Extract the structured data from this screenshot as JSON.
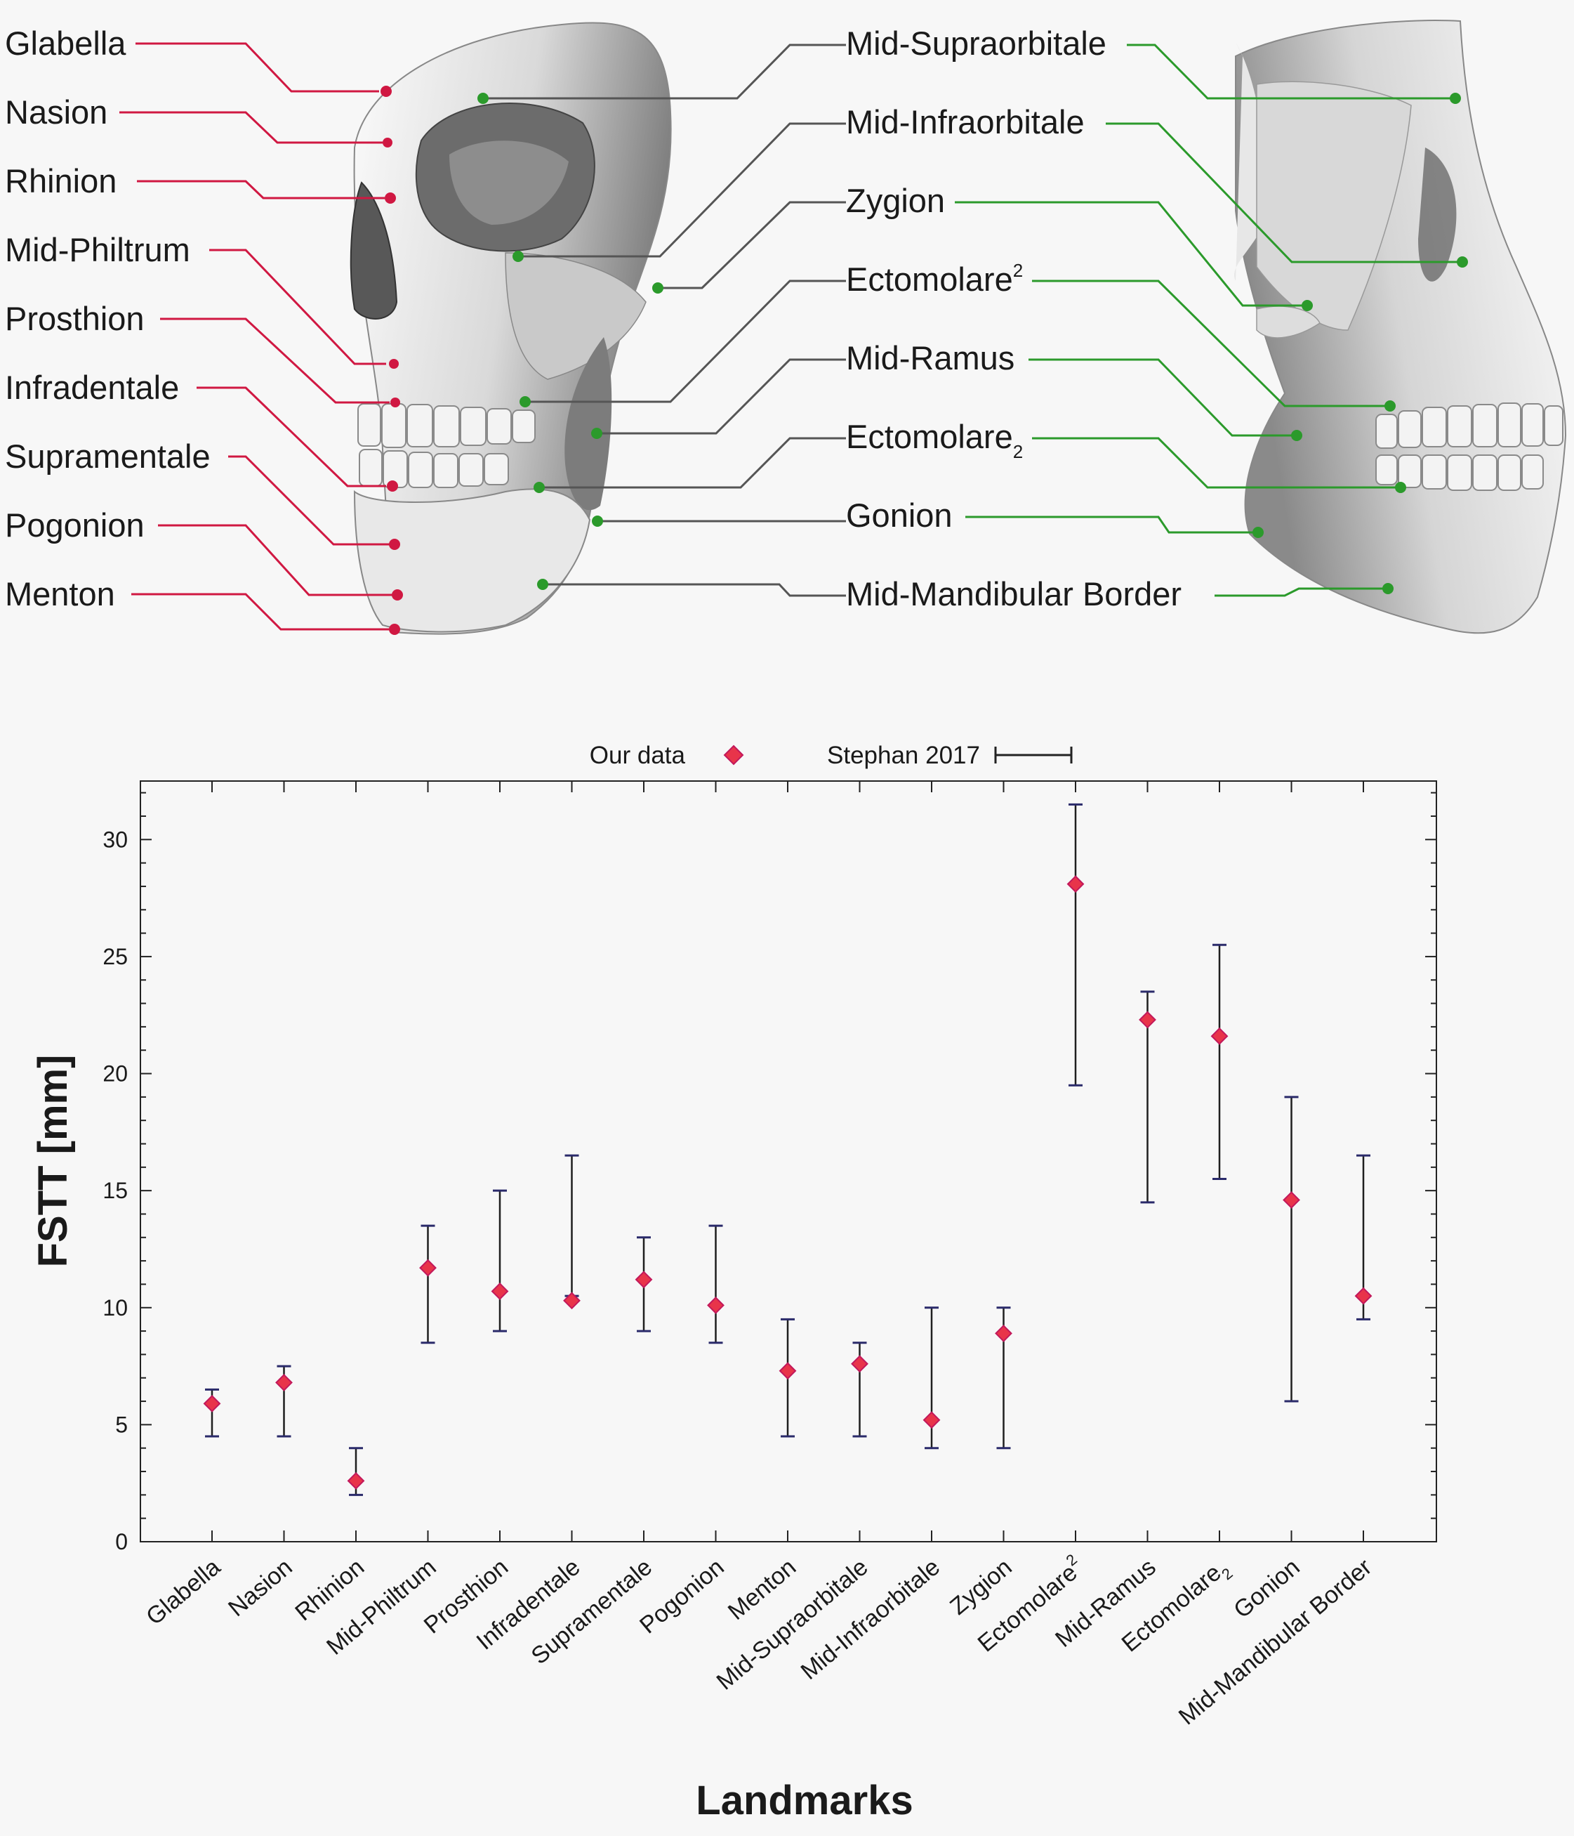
{
  "anatomy": {
    "left_labels": [
      "Glabella",
      "Nasion",
      "Rhinion",
      "Mid-Philtrum",
      "Prosthion",
      "Infradentale",
      "Supramentale",
      "Pogonion",
      "Menton"
    ],
    "right_labels": [
      {
        "base": "Mid-Supraorbitale",
        "script": ""
      },
      {
        "base": "Mid-Infraorbitale",
        "script": ""
      },
      {
        "base": "Zygion",
        "script": ""
      },
      {
        "base": "Ectomolare",
        "script": "2",
        "pos": "sup"
      },
      {
        "base": "Mid-Ramus",
        "script": ""
      },
      {
        "base": "Ectomolare",
        "script": "2",
        "pos": "sub"
      },
      {
        "base": "Gonion",
        "script": ""
      },
      {
        "base": "Mid-Mandibular Border",
        "script": ""
      }
    ],
    "colors": {
      "midline": "#d01842",
      "lateral": "#2b9a2b",
      "skull_light": "#f2f2f2",
      "skull_dark": "#6c6c6c"
    }
  },
  "chart_data": {
    "type": "scatter",
    "xlabel": "Landmarks",
    "ylabel": "FSTT [mm]",
    "ylim": [
      0,
      32.5
    ],
    "yticks": [
      0,
      5,
      10,
      15,
      20,
      25,
      30
    ],
    "grid": false,
    "legend": {
      "placement": "top-center",
      "entries": [
        "Our data",
        "Stephan 2017"
      ]
    },
    "categories": [
      "Glabella",
      "Nasion",
      "Rhinion",
      "Mid-Philtrum",
      "Prosthion",
      "Infradentale",
      "Supramentale",
      "Pogonion",
      "Menton",
      "Mid-Supraorbitale",
      "Mid-Infraorbitale",
      "Zygion",
      "Ectomolare2",
      "Mid-Ramus",
      "Ectomolare2",
      "Gonion",
      "Mid-Mandibular Border"
    ],
    "category_scripts": [
      "",
      "",
      "",
      "",
      "",
      "",
      "",
      "",
      "",
      "",
      "",
      "",
      "sup",
      "",
      "sub",
      "",
      ""
    ],
    "series": [
      {
        "name": "Our data",
        "values": [
          5.9,
          6.8,
          2.6,
          11.7,
          10.7,
          10.3,
          11.2,
          10.1,
          7.3,
          7.6,
          5.2,
          8.9,
          28.1,
          22.3,
          21.6,
          14.6,
          10.5
        ]
      },
      {
        "name": "Stephan 2017",
        "ranges": [
          [
            4.5,
            6.5
          ],
          [
            4.5,
            7.5
          ],
          [
            2.0,
            4.0
          ],
          [
            8.5,
            13.5
          ],
          [
            9.0,
            15.0
          ],
          [
            10.5,
            16.5
          ],
          [
            9.0,
            13.0
          ],
          [
            8.5,
            13.5
          ],
          [
            4.5,
            9.5
          ],
          [
            4.5,
            8.5
          ],
          [
            4.0,
            10.0
          ],
          [
            4.0,
            10.0
          ],
          [
            19.5,
            31.5
          ],
          [
            14.5,
            23.5
          ],
          [
            15.5,
            25.5
          ],
          [
            6.0,
            19.0
          ],
          [
            9.5,
            16.5
          ]
        ]
      }
    ],
    "colors": {
      "marker": "#e8344a",
      "marker_edge": "#c2185b",
      "errorbar": "#1f1f1f",
      "errorbar_cap": "#2a2a6a"
    }
  }
}
